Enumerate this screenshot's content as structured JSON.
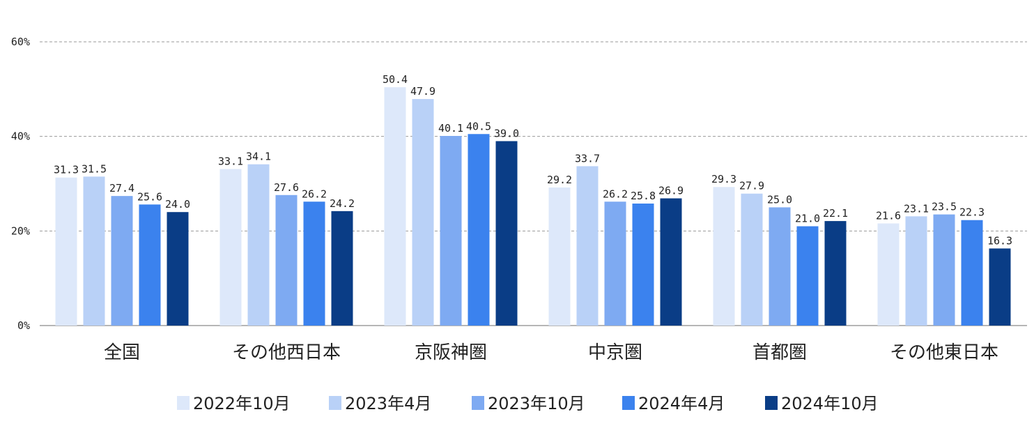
{
  "chart_data": {
    "type": "bar",
    "categories": [
      "全国",
      "その他西日本",
      "京阪神圏",
      "中京圏",
      "首都圏",
      "その他東日本"
    ],
    "series": [
      {
        "name": "2022年10月",
        "color": "#dde8fa",
        "values": [
          31.3,
          33.1,
          50.4,
          29.2,
          29.3,
          21.6
        ]
      },
      {
        "name": "2023年4月",
        "color": "#b9d1f7",
        "values": [
          31.5,
          34.1,
          47.9,
          33.7,
          27.9,
          23.1
        ]
      },
      {
        "name": "2023年10月",
        "color": "#7eaaf2",
        "values": [
          27.4,
          27.6,
          40.1,
          26.2,
          25.0,
          23.5
        ]
      },
      {
        "name": "2024年4月",
        "color": "#3b82ee",
        "values": [
          25.6,
          26.2,
          40.5,
          25.8,
          21.0,
          22.3
        ]
      },
      {
        "name": "2024年10月",
        "color": "#0a3d86",
        "values": [
          24.0,
          24.2,
          39.0,
          26.9,
          22.1,
          16.3
        ]
      }
    ],
    "ylim": [
      0,
      60
    ],
    "yticks": [
      0,
      20,
      40,
      60
    ],
    "ytick_labels": [
      "0%",
      "20%",
      "40%",
      "60%"
    ],
    "grid": true,
    "legend_position": "bottom-center"
  }
}
